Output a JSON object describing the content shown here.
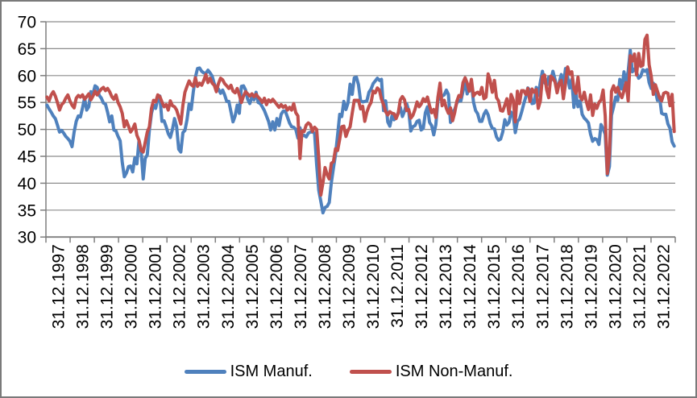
{
  "chart": {
    "background": "#ffffff",
    "border_color": "#7a7a7a",
    "axis_color": "#7f7f7f",
    "gridline_color": "#8c8c8c",
    "text_color": "#000000"
  },
  "chart_data": {
    "type": "line",
    "title": "",
    "xlabel": "",
    "ylabel": "",
    "ylim": [
      30,
      70
    ],
    "y_ticks": [
      30,
      35,
      40,
      45,
      50,
      55,
      60,
      65,
      70
    ],
    "x_start": "31.12.1997",
    "x_end": "31.12.2022",
    "interval": "monthly",
    "grid": "horizontal",
    "legend_position": "bottom-center",
    "x_tick_labels": [
      "31.12.1997",
      "31.12.1998",
      "31.12.1999",
      "31.12.2000",
      "31.12.2001",
      "31.12.2002",
      "31.12.2003",
      "31.12.2004",
      "31.12.2005",
      "31.12.2006",
      "31.12.2007",
      "31.12.2008",
      "31.12.2009",
      "31.12.2010",
      "31.12.2011",
      "31.12.2012",
      "31.12.2013",
      "31.12.2014",
      "31.12.2015",
      "31.12.2016",
      "31.12.2017",
      "31.12.2018",
      "31.12.2019",
      "31.12.2020",
      "31.12.2021",
      "31.12.2022"
    ],
    "series": [
      {
        "name": "ISM Manuf.",
        "color": "#4F81BD",
        "line_width": 4,
        "values": [
          54.5,
          53.8,
          53.2,
          52.5,
          52.0,
          50.8,
          49.5,
          49.8,
          49.3,
          48.7,
          48.3,
          47.8,
          46.8,
          49.5,
          51.5,
          52.5,
          52.3,
          54.0,
          55.8,
          53.6,
          54.2,
          57.0,
          56.6,
          58.1,
          57.8,
          56.3,
          55.8,
          54.9,
          54.7,
          53.2,
          51.4,
          52.5,
          49.9,
          49.7,
          48.7,
          47.9,
          43.9,
          41.2,
          41.9,
          43.1,
          43.2,
          42.1,
          44.7,
          43.6,
          47.9,
          46.2,
          40.8,
          44.6,
          45.3,
          49.9,
          53.0,
          54.5,
          53.9,
          55.7,
          56.2,
          51.5,
          51.6,
          50.5,
          49.2,
          48.5,
          50.0,
          52.0,
          50.5,
          46.3,
          45.8,
          49.4,
          49.8,
          51.8,
          54.7,
          53.7,
          57.0,
          59.7,
          61.3,
          61.4,
          60.8,
          60.5,
          60.4,
          61.0,
          60.5,
          59.9,
          58.5,
          57.4,
          57.5,
          56.7,
          57.3,
          56.4,
          55.2,
          55.2,
          53.3,
          51.4,
          52.5,
          54.5,
          53.0,
          58.0,
          58.1,
          57.3,
          55.6,
          54.8,
          56.0,
          55.5,
          56.9,
          55.0,
          54.8,
          54.2,
          53.5,
          52.5,
          51.5,
          49.9,
          51.4,
          49.9,
          52.0,
          50.7,
          52.8,
          53.4,
          53.4,
          52.3,
          51.2,
          50.5,
          50.4,
          50.0,
          48.4,
          50.3,
          48.8,
          48.9,
          48.6,
          49.3,
          49.5,
          49.5,
          49.3,
          43.4,
          38.7,
          36.6,
          34.5,
          35.5,
          35.7,
          36.4,
          40.1,
          42.8,
          45.3,
          49.0,
          52.8,
          52.4,
          55.2,
          53.7,
          54.9,
          58.4,
          56.5,
          59.6,
          59.7,
          58.3,
          55.3,
          55.1,
          55.2,
          55.3,
          56.9,
          57.5,
          58.5,
          59.0,
          59.5,
          59.1,
          59.3,
          53.5,
          55.3,
          51.4,
          50.6,
          52.5,
          51.8,
          52.2,
          53.1,
          54.1,
          52.4,
          53.4,
          54.8,
          53.5,
          49.7,
          50.5,
          50.7,
          51.5,
          51.7,
          49.9,
          50.2,
          53.1,
          54.2,
          51.3,
          50.7,
          49.0,
          50.9,
          55.4,
          55.7,
          56.2,
          56.4,
          57.3,
          56.5,
          51.3,
          53.2,
          53.7,
          54.9,
          55.4,
          55.3,
          57.1,
          59.0,
          56.6,
          57.9,
          58.7,
          55.1,
          53.5,
          52.9,
          51.5,
          51.5,
          52.8,
          53.5,
          52.7,
          51.1,
          50.2,
          50.1,
          48.6,
          48.0,
          48.2,
          49.5,
          51.8,
          50.8,
          51.3,
          53.2,
          52.6,
          49.4,
          51.5,
          51.9,
          53.2,
          54.7,
          56.0,
          57.7,
          57.2,
          54.8,
          54.9,
          57.8,
          56.3,
          58.8,
          60.8,
          58.7,
          58.2,
          59.7,
          59.1,
          60.8,
          59.3,
          57.3,
          58.7,
          60.2,
          58.1,
          61.3,
          59.8,
          57.7,
          59.3,
          54.1,
          56.6,
          54.2,
          55.3,
          52.8,
          52.1,
          51.7,
          51.2,
          49.1,
          47.8,
          48.3,
          48.1,
          47.2,
          50.9,
          50.1,
          49.1,
          41.5,
          43.1,
          52.6,
          54.2,
          56.0,
          55.4,
          59.3,
          57.5,
          60.7,
          58.7,
          60.8,
          64.7,
          60.7,
          61.2,
          60.6,
          59.5,
          59.9,
          61.1,
          60.8,
          61.1,
          58.7,
          57.6,
          58.6,
          57.1,
          55.4,
          56.1,
          53.0,
          52.8,
          52.8,
          51.0,
          50.2,
          47.7,
          46.9
        ]
      },
      {
        "name": "ISM Non-Manuf.",
        "color": "#C0504D",
        "line_width": 4,
        "values": [
          56.0,
          55.3,
          56.4,
          57.0,
          56.2,
          55.0,
          53.6,
          54.6,
          55.0,
          55.8,
          56.4,
          55.3,
          54.5,
          54.0,
          55.8,
          56.3,
          56.0,
          56.4,
          55.6,
          56.1,
          56.6,
          55.5,
          56.2,
          57.1,
          56.4,
          57.0,
          57.5,
          57.8,
          57.2,
          57.6,
          57.0,
          56.1,
          55.6,
          56.4,
          55.0,
          54.2,
          53.0,
          50.5,
          51.6,
          50.6,
          49.5,
          50.1,
          51.0,
          48.9,
          48.0,
          46.1,
          45.8,
          47.6,
          49.5,
          50.5,
          53.9,
          55.4,
          55.1,
          56.4,
          56.1,
          55.1,
          54.2,
          54.6,
          53.6,
          55.3,
          54.4,
          54.2,
          53.6,
          52.3,
          51.0,
          54.5,
          56.9,
          58.0,
          59.0,
          58.3,
          58.0,
          59.6,
          58.0,
          58.6,
          58.2,
          59.1,
          60.2,
          58.7,
          59.5,
          58.6,
          58.2,
          57.0,
          58.5,
          59.5,
          59.2,
          58.5,
          58.1,
          57.6,
          58.2,
          57.1,
          56.8,
          57.6,
          56.4,
          55.0,
          56.2,
          57.0,
          56.6,
          56.2,
          56.6,
          56.1,
          56.5,
          56.0,
          55.6,
          55.0,
          55.8,
          54.6,
          55.5,
          55.1,
          55.6,
          55.1,
          54.6,
          54.1,
          54.6,
          54.1,
          54.4,
          53.6,
          54.1,
          53.6,
          54.8,
          53.1,
          52.5,
          44.6,
          49.7,
          49.6,
          50.8,
          51.2,
          50.9,
          49.6,
          50.4,
          50.0,
          44.6,
          37.8,
          40.1,
          42.9,
          41.6,
          40.8,
          43.7,
          44.0,
          46.4,
          46.1,
          48.2,
          50.5,
          50.6,
          48.7,
          49.8,
          50.5,
          53.0,
          55.4,
          55.4,
          55.4,
          53.8,
          54.3,
          51.5,
          53.2,
          54.3,
          55.0,
          57.1,
          56.8,
          57.7,
          57.3,
          55.6,
          54.6,
          53.3,
          52.7,
          53.3,
          53.0,
          52.9,
          52.0,
          53.0,
          55.5,
          56.1,
          55.5,
          53.5,
          53.7,
          52.1,
          52.6,
          53.7,
          55.1,
          54.2,
          54.7,
          55.7,
          55.2,
          56.0,
          54.4,
          53.1,
          53.7,
          52.2,
          56.0,
          58.6,
          54.4,
          55.4,
          53.9,
          53.0,
          54.0,
          51.6,
          53.1,
          55.2,
          56.3,
          56.0,
          58.7,
          59.6,
          58.6,
          57.1,
          59.3,
          56.2,
          56.7,
          56.9,
          56.5,
          57.8,
          55.7,
          56.0,
          60.3,
          59.0,
          56.9,
          59.1,
          55.9,
          55.3,
          53.5,
          53.4,
          54.5,
          55.7,
          52.9,
          56.5,
          55.5,
          51.4,
          57.1,
          54.8,
          57.2,
          57.2,
          56.5,
          57.6,
          55.2,
          57.5,
          56.9,
          57.4,
          53.9,
          55.3,
          59.8,
          60.1,
          57.4,
          55.9,
          59.9,
          59.5,
          58.8,
          56.8,
          58.6,
          59.1,
          55.7,
          58.5,
          61.6,
          60.3,
          60.7,
          57.6,
          56.7,
          59.7,
          56.1,
          55.5,
          56.9,
          55.1,
          53.7,
          56.4,
          52.6,
          54.7,
          53.9,
          55.0,
          55.5,
          57.3,
          52.5,
          41.8,
          45.4,
          57.1,
          58.1,
          56.9,
          57.8,
          56.6,
          55.9,
          57.2,
          58.7,
          55.3,
          63.7,
          62.7,
          64.0,
          60.1,
          64.1,
          61.7,
          61.9,
          66.7,
          67.5,
          62.0,
          59.9,
          56.5,
          58.3,
          57.1,
          55.9,
          55.3,
          56.7,
          56.9,
          56.7,
          54.4,
          56.5,
          49.6
        ]
      }
    ]
  }
}
